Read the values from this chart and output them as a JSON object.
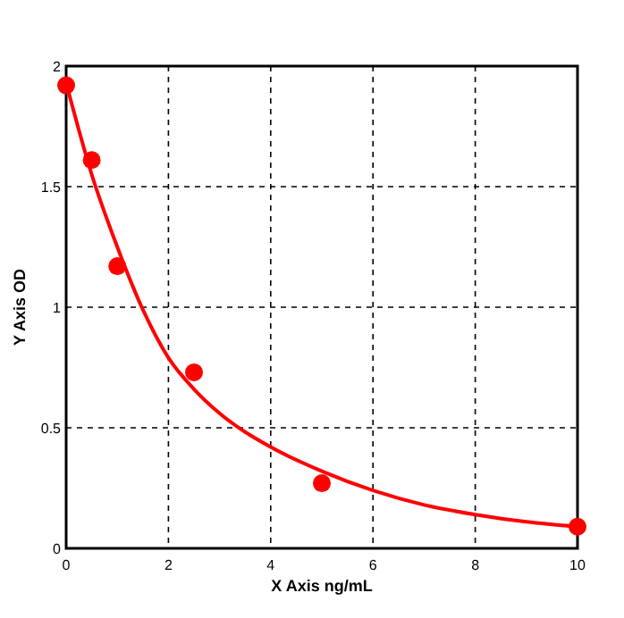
{
  "chart_data": {
    "type": "scatter",
    "xlabel": "X Axis ng/mL",
    "ylabel": "Y Axis OD",
    "xlim": [
      0,
      10
    ],
    "ylim": [
      0,
      2
    ],
    "xticks": [
      0,
      2,
      4,
      6,
      8,
      10
    ],
    "yticks": [
      0,
      0.5,
      1,
      1.5,
      2
    ],
    "grid": true,
    "marker": "circle",
    "series": [
      {
        "color": "#ff0000",
        "x": [
          0,
          0.5,
          1,
          2.5,
          5,
          10
        ],
        "values": [
          1.92,
          1.61,
          1.17,
          0.73,
          0.27,
          0.09
        ]
      },
      {
        "type": "line",
        "color": "#ff0000",
        "line_style": "solid",
        "marker": "none",
        "x": [
          0,
          0.5,
          1,
          1.5,
          2,
          2.5,
          3,
          4,
          5,
          6,
          7,
          8,
          9,
          10
        ],
        "values": [
          1.93,
          1.55,
          1.25,
          0.99,
          0.79,
          0.66,
          0.56,
          0.42,
          0.32,
          0.24,
          0.18,
          0.14,
          0.11,
          0.09
        ]
      }
    ]
  }
}
